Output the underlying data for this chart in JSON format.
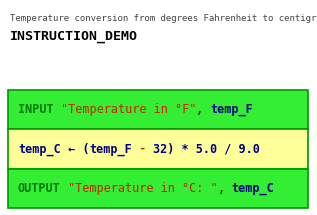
{
  "title_small": "Temperature conversion from degrees Fahrenheit to centigrade",
  "title_big": "INSTRUCTION_DEMO",
  "bg_color": "#ffffff",
  "border_color": "#009900",
  "row1_bg": "#33ee33",
  "row2_bg": "#ffff99",
  "row3_bg": "#33ee33",
  "row1_segments": [
    {
      "text": "INPUT",
      "color": "#007700",
      "bold": true
    },
    {
      "text": " ",
      "color": "#000000",
      "bold": false
    },
    {
      "text": "\"Temperature in °F\"",
      "color": "#cc2200",
      "bold": false
    },
    {
      "text": ", ",
      "color": "#000000",
      "bold": false
    },
    {
      "text": "temp_F",
      "color": "#000088",
      "bold": true
    }
  ],
  "row2_segments": [
    {
      "text": "temp_C",
      "color": "#000088",
      "bold": true
    },
    {
      "text": " ← (",
      "color": "#000088",
      "bold": true
    },
    {
      "text": "temp_F",
      "color": "#000088",
      "bold": true
    },
    {
      "text": " - ",
      "color": "#cc2200",
      "bold": true
    },
    {
      "text": "32) * 5.0 / 9.0",
      "color": "#000088",
      "bold": true
    }
  ],
  "row3_segments": [
    {
      "text": "OUTPUT",
      "color": "#007700",
      "bold": true
    },
    {
      "text": " ",
      "color": "#000000",
      "bold": false
    },
    {
      "text": "\"Temperature in °C: \"",
      "color": "#cc2200",
      "bold": false
    },
    {
      "text": ", ",
      "color": "#000000",
      "bold": false
    },
    {
      "text": "temp_C",
      "color": "#000088",
      "bold": true
    }
  ],
  "font_size_small": 6.5,
  "font_size_big": 9.5,
  "font_size_row": 8.5,
  "title_small_color": "#444444",
  "title_big_color": "#000000"
}
